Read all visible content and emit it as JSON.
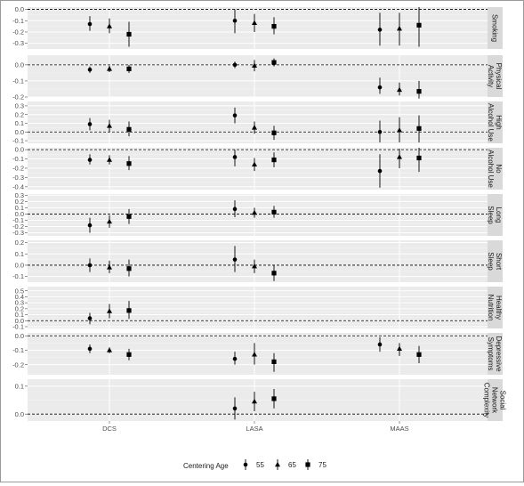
{
  "chart_data": {
    "type": "scatter",
    "title": "",
    "xlabel": "",
    "ylabel": "",
    "categories": [
      "DCS",
      "LASA",
      "MAAS"
    ],
    "legend": {
      "title": "Centering Age",
      "position": "bottom",
      "levels": [
        "55",
        "65",
        "75"
      ],
      "shapes": [
        "circle",
        "triangle",
        "square"
      ]
    },
    "facets": [
      {
        "strip": [
          "Smoking"
        ],
        "ylim": [
          -0.35,
          0.02
        ],
        "ticks": [
          "0.0",
          "-0.1",
          "-0.2",
          "-0.3"
        ],
        "tick_values": [
          0,
          -0.1,
          -0.2,
          -0.3
        ],
        "points": [
          {
            "cat": "DCS",
            "level": "55",
            "y": -0.13,
            "lo": -0.19,
            "hi": -0.06
          },
          {
            "cat": "DCS",
            "level": "65",
            "y": -0.15,
            "lo": -0.21,
            "hi": -0.08
          },
          {
            "cat": "DCS",
            "level": "75",
            "y": -0.22,
            "lo": -0.33,
            "hi": -0.11
          },
          {
            "cat": "LASA",
            "level": "55",
            "y": -0.1,
            "lo": -0.21,
            "hi": 0.0
          },
          {
            "cat": "LASA",
            "level": "65",
            "y": -0.12,
            "lo": -0.2,
            "hi": -0.04
          },
          {
            "cat": "LASA",
            "level": "75",
            "y": -0.15,
            "lo": -0.22,
            "hi": -0.07
          },
          {
            "cat": "MAAS",
            "level": "55",
            "y": -0.18,
            "lo": -0.32,
            "hi": -0.03
          },
          {
            "cat": "MAAS",
            "level": "65",
            "y": -0.17,
            "lo": -0.32,
            "hi": -0.03
          },
          {
            "cat": "MAAS",
            "level": "75",
            "y": -0.14,
            "lo": -0.33,
            "hi": 0.02
          }
        ]
      },
      {
        "strip": [
          "Physical",
          "Activity"
        ],
        "ylim": [
          -0.2,
          0.06
        ],
        "ticks": [
          "0.0",
          "-0.1",
          "-0.2"
        ],
        "tick_values": [
          0,
          -0.1,
          -0.2
        ],
        "points": [
          {
            "cat": "DCS",
            "level": "55",
            "y": -0.03,
            "lo": -0.05,
            "hi": -0.01
          },
          {
            "cat": "DCS",
            "level": "65",
            "y": -0.025,
            "lo": -0.045,
            "hi": -0.005
          },
          {
            "cat": "DCS",
            "level": "75",
            "y": -0.025,
            "lo": -0.05,
            "hi": 0.0
          },
          {
            "cat": "LASA",
            "level": "55",
            "y": 0.0,
            "lo": -0.02,
            "hi": 0.02
          },
          {
            "cat": "LASA",
            "level": "65",
            "y": -0.005,
            "lo": -0.04,
            "hi": 0.03
          },
          {
            "cat": "LASA",
            "level": "75",
            "y": 0.015,
            "lo": -0.01,
            "hi": 0.04
          },
          {
            "cat": "MAAS",
            "level": "55",
            "y": -0.14,
            "lo": -0.18,
            "hi": -0.08
          },
          {
            "cat": "MAAS",
            "level": "65",
            "y": -0.155,
            "lo": -0.19,
            "hi": -0.11
          },
          {
            "cat": "MAAS",
            "level": "75",
            "y": -0.165,
            "lo": -0.21,
            "hi": -0.1
          }
        ]
      },
      {
        "strip": [
          "High",
          "Alcohol Use"
        ],
        "ylim": [
          -0.13,
          0.35
        ],
        "ticks": [
          "0.3",
          "0.2",
          "0.1",
          "0.0",
          "-0.1"
        ],
        "tick_values": [
          0.3,
          0.2,
          0.1,
          0,
          -0.1
        ],
        "points": [
          {
            "cat": "DCS",
            "level": "55",
            "y": 0.09,
            "lo": 0.02,
            "hi": 0.16
          },
          {
            "cat": "DCS",
            "level": "65",
            "y": 0.07,
            "lo": 0.0,
            "hi": 0.14
          },
          {
            "cat": "DCS",
            "level": "75",
            "y": 0.03,
            "lo": -0.05,
            "hi": 0.12
          },
          {
            "cat": "LASA",
            "level": "55",
            "y": 0.19,
            "lo": 0.1,
            "hi": 0.28
          },
          {
            "cat": "LASA",
            "level": "65",
            "y": 0.05,
            "lo": -0.02,
            "hi": 0.12
          },
          {
            "cat": "LASA",
            "level": "75",
            "y": -0.01,
            "lo": -0.09,
            "hi": 0.07
          },
          {
            "cat": "MAAS",
            "level": "55",
            "y": 0.0,
            "lo": -0.12,
            "hi": 0.13
          },
          {
            "cat": "MAAS",
            "level": "65",
            "y": 0.02,
            "lo": -0.12,
            "hi": 0.17
          },
          {
            "cat": "MAAS",
            "level": "75",
            "y": 0.04,
            "lo": -0.12,
            "hi": 0.19
          }
        ]
      },
      {
        "strip": [
          "No",
          "Alcohol Use"
        ],
        "ylim": [
          -0.43,
          0.02
        ],
        "ticks": [
          "0.0",
          "-0.1",
          "-0.2",
          "-0.3",
          "-0.4"
        ],
        "tick_values": [
          0,
          -0.1,
          -0.2,
          -0.3,
          -0.4
        ],
        "points": [
          {
            "cat": "DCS",
            "level": "55",
            "y": -0.11,
            "lo": -0.16,
            "hi": -0.05
          },
          {
            "cat": "DCS",
            "level": "65",
            "y": -0.11,
            "lo": -0.16,
            "hi": -0.06
          },
          {
            "cat": "DCS",
            "level": "75",
            "y": -0.15,
            "lo": -0.22,
            "hi": -0.07
          },
          {
            "cat": "LASA",
            "level": "55",
            "y": -0.08,
            "lo": -0.18,
            "hi": 0.0
          },
          {
            "cat": "LASA",
            "level": "65",
            "y": -0.16,
            "lo": -0.23,
            "hi": -0.09
          },
          {
            "cat": "LASA",
            "level": "75",
            "y": -0.11,
            "lo": -0.19,
            "hi": -0.03
          },
          {
            "cat": "MAAS",
            "level": "55",
            "y": -0.23,
            "lo": -0.41,
            "hi": -0.05
          },
          {
            "cat": "MAAS",
            "level": "65",
            "y": -0.08,
            "lo": -0.2,
            "hi": 0.01
          },
          {
            "cat": "MAAS",
            "level": "75",
            "y": -0.09,
            "lo": -0.24,
            "hi": 0.02
          }
        ]
      },
      {
        "strip": [
          "Long",
          "Sleep"
        ],
        "ylim": [
          -0.35,
          0.32
        ],
        "ticks": [
          "0.3",
          "0.2",
          "0.1",
          "0.0",
          "-0.1",
          "-0.2",
          "-0.3"
        ],
        "tick_values": [
          0.3,
          0.2,
          0.1,
          0,
          -0.1,
          -0.2,
          -0.3
        ],
        "points": [
          {
            "cat": "DCS",
            "level": "55",
            "y": -0.18,
            "lo": -0.3,
            "hi": -0.06
          },
          {
            "cat": "DCS",
            "level": "65",
            "y": -0.12,
            "lo": -0.22,
            "hi": -0.02
          },
          {
            "cat": "DCS",
            "level": "75",
            "y": -0.04,
            "lo": -0.16,
            "hi": 0.08
          },
          {
            "cat": "LASA",
            "level": "55",
            "y": 0.08,
            "lo": -0.05,
            "hi": 0.22
          },
          {
            "cat": "LASA",
            "level": "65",
            "y": 0.02,
            "lo": -0.06,
            "hi": 0.1
          },
          {
            "cat": "LASA",
            "level": "75",
            "y": 0.03,
            "lo": -0.06,
            "hi": 0.13
          }
        ]
      },
      {
        "strip": [
          "Short",
          "Sleep"
        ],
        "ylim": [
          -0.15,
          0.22
        ],
        "ticks": [
          "0.2",
          "0.1",
          "0.0",
          "-0.1"
        ],
        "tick_values": [
          0.2,
          0.1,
          0,
          -0.1
        ],
        "points": [
          {
            "cat": "DCS",
            "level": "55",
            "y": 0.0,
            "lo": -0.06,
            "hi": 0.06
          },
          {
            "cat": "DCS",
            "level": "65",
            "y": -0.02,
            "lo": -0.07,
            "hi": 0.04
          },
          {
            "cat": "DCS",
            "level": "75",
            "y": -0.03,
            "lo": -0.1,
            "hi": 0.05
          },
          {
            "cat": "LASA",
            "level": "55",
            "y": 0.05,
            "lo": -0.06,
            "hi": 0.17
          },
          {
            "cat": "LASA",
            "level": "65",
            "y": -0.01,
            "lo": -0.07,
            "hi": 0.05
          },
          {
            "cat": "LASA",
            "level": "75",
            "y": -0.07,
            "lo": -0.14,
            "hi": 0.0
          }
        ]
      },
      {
        "strip": [
          "Healthy",
          "Nutrition"
        ],
        "ylim": [
          -0.13,
          0.57
        ],
        "ticks": [
          "0.5",
          "0.4",
          "0.3",
          "0.2",
          "0.1",
          "0.0",
          "-0.1"
        ],
        "tick_values": [
          0.5,
          0.4,
          0.3,
          0.2,
          0.1,
          0,
          -0.1
        ],
        "points": [
          {
            "cat": "DCS",
            "level": "55",
            "y": 0.04,
            "lo": -0.06,
            "hi": 0.13
          },
          {
            "cat": "DCS",
            "level": "65",
            "y": 0.16,
            "lo": 0.04,
            "hi": 0.28
          },
          {
            "cat": "DCS",
            "level": "75",
            "y": 0.17,
            "lo": 0.03,
            "hi": 0.33
          }
        ]
      },
      {
        "strip": [
          "Depressive",
          "Symptoms"
        ],
        "ylim": [
          -0.27,
          0.02
        ],
        "ticks": [
          "0.0",
          "-0.1",
          "-0.2"
        ],
        "tick_values": [
          0,
          -0.1,
          -0.2
        ],
        "points": [
          {
            "cat": "DCS",
            "level": "55",
            "y": -0.09,
            "lo": -0.12,
            "hi": -0.06
          },
          {
            "cat": "DCS",
            "level": "65",
            "y": -0.1,
            "lo": -0.12,
            "hi": -0.08
          },
          {
            "cat": "DCS",
            "level": "75",
            "y": -0.13,
            "lo": -0.17,
            "hi": -0.09
          },
          {
            "cat": "LASA",
            "level": "55",
            "y": -0.16,
            "lo": -0.2,
            "hi": -0.11
          },
          {
            "cat": "LASA",
            "level": "65",
            "y": -0.13,
            "lo": -0.2,
            "hi": -0.05
          },
          {
            "cat": "LASA",
            "level": "75",
            "y": -0.18,
            "lo": -0.25,
            "hi": -0.12
          },
          {
            "cat": "MAAS",
            "level": "55",
            "y": -0.06,
            "lo": -0.11,
            "hi": -0.01
          },
          {
            "cat": "MAAS",
            "level": "65",
            "y": -0.09,
            "lo": -0.14,
            "hi": -0.05
          },
          {
            "cat": "MAAS",
            "level": "75",
            "y": -0.13,
            "lo": -0.19,
            "hi": -0.07
          }
        ]
      },
      {
        "strip": [
          "Social",
          "Network",
          "Complexity"
        ],
        "ylim": [
          -0.025,
          0.125
        ],
        "ticks": [
          "0.1",
          "0.0"
        ],
        "tick_values": [
          0.1,
          0
        ],
        "points": [
          {
            "cat": "LASA",
            "level": "55",
            "y": 0.02,
            "lo": -0.02,
            "hi": 0.06
          },
          {
            "cat": "LASA",
            "level": "65",
            "y": 0.045,
            "lo": 0.01,
            "hi": 0.08
          },
          {
            "cat": "LASA",
            "level": "75",
            "y": 0.055,
            "lo": 0.02,
            "hi": 0.09
          }
        ]
      }
    ]
  }
}
